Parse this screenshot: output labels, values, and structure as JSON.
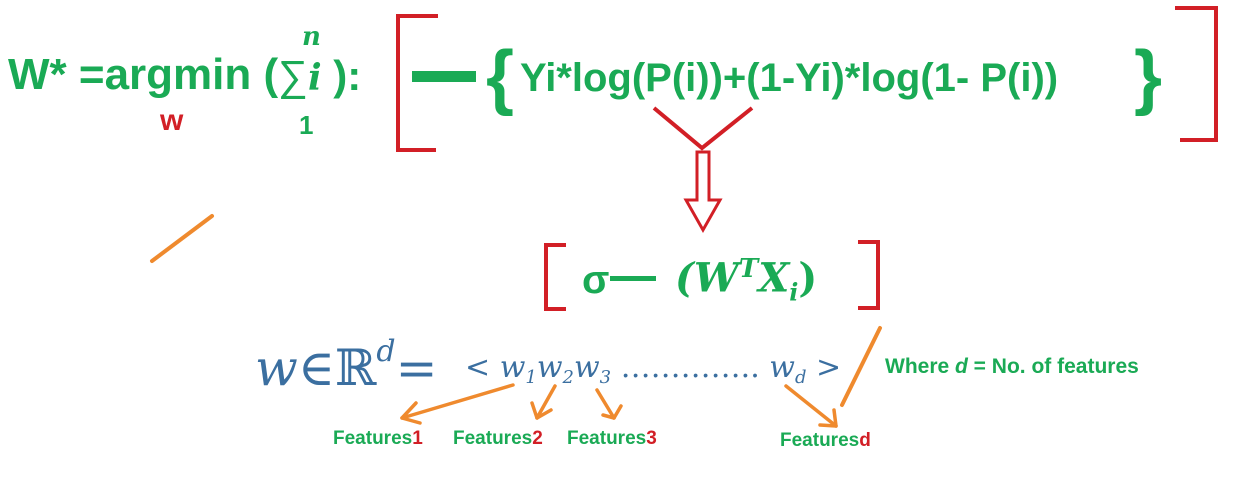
{
  "formula": {
    "lhs": "W* =argmin (",
    "argmin_sub": "w",
    "sum_symbol": "∑",
    "sum_upper": "n",
    "sum_lower": "1",
    "sum_var": "i",
    "sum_close": " ):",
    "loss_expression": "Yi*log(P(i))+(1-Yi)*log(1- P(i))",
    "brace_open": "{",
    "brace_close": "}"
  },
  "sigmoid": {
    "symbol": "σ",
    "argument": "(W",
    "arg_sup": "T",
    "arg_x": "X",
    "arg_sub": "i",
    "arg_close": ")"
  },
  "weight_vector": {
    "w": "w",
    "in": "∈",
    "reals": "ℝ",
    "dim": "d",
    "eq": "=",
    "open": "<",
    "w1": "w",
    "s1": "1",
    "w2": "w",
    "s2": "2",
    "w3": "w",
    "s3": "3",
    "dots": "…………..",
    "wd": "w",
    "sd": "d",
    "close": ">"
  },
  "note": {
    "prefix": "Where ",
    "var": "d",
    "suffix": " =  No. of features"
  },
  "features": [
    {
      "label": "Features",
      "index": "1"
    },
    {
      "label": "Features",
      "index": "2"
    },
    {
      "label": "Features",
      "index": "3"
    },
    {
      "label": "Features",
      "index": "d"
    }
  ],
  "colors": {
    "formula_green": "#1aaa55",
    "bracket_red": "#d21f26",
    "arrow_orange": "#ef8a2e",
    "vector_blue": "#3b6fa0"
  }
}
